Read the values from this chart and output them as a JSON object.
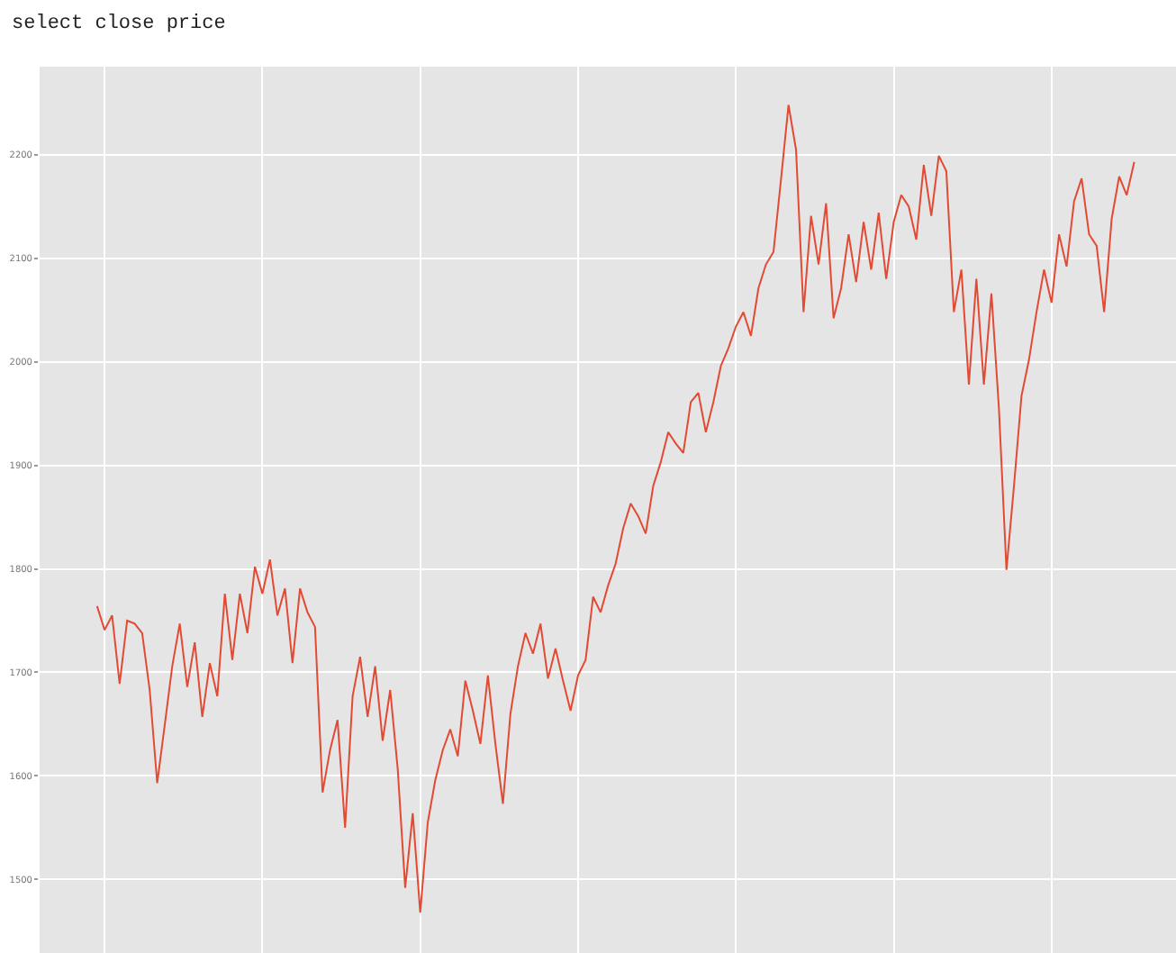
{
  "chart_data": {
    "type": "line",
    "title": "select close price",
    "categories": [
      null,
      null,
      null,
      null,
      null,
      null,
      null,
      null,
      null,
      null,
      null,
      null,
      null,
      null,
      null,
      null,
      null,
      null,
      null,
      null,
      null,
      null,
      null,
      null,
      null,
      null,
      null,
      null,
      null,
      null,
      null,
      null,
      null,
      null,
      null,
      null,
      null,
      null,
      null,
      null,
      null,
      null,
      null,
      null,
      null,
      null,
      null,
      null,
      null,
      null,
      null,
      null,
      null,
      null,
      null,
      null,
      null,
      null,
      null,
      null,
      null,
      null,
      null,
      null,
      null,
      null,
      null,
      null,
      null,
      null,
      null,
      null,
      null,
      null,
      null,
      null,
      null,
      null,
      null,
      null,
      null,
      null,
      null,
      null,
      null,
      null,
      null,
      null,
      null,
      null,
      null,
      null,
      null,
      null,
      null,
      null,
      null,
      null,
      null,
      null,
      null,
      null,
      null,
      null,
      null,
      null,
      null,
      null,
      null,
      null,
      null,
      null,
      null,
      null,
      null,
      null,
      null,
      null,
      null,
      null,
      null,
      null,
      null,
      null,
      null,
      null,
      null,
      null,
      null,
      null,
      null,
      null,
      null,
      null,
      null,
      null,
      null,
      null,
      null
    ],
    "series": [
      {
        "color": "#e24a33",
        "values": [
          1764,
          1741,
          1755,
          1689,
          1750,
          1747,
          1738,
          1683,
          1593,
          1649,
          1706,
          1747,
          1686,
          1729,
          1657,
          1709,
          1677,
          1776,
          1712,
          1776,
          1738,
          1802,
          1776,
          1809,
          1755,
          1781,
          1709,
          1781,
          1758,
          1744,
          1584,
          1625,
          1654,
          1550,
          1677,
          1715,
          1657,
          1706,
          1634,
          1683,
          1607,
          1492,
          1564,
          1468,
          1555,
          1596,
          1625,
          1645,
          1619,
          1692,
          1663,
          1631,
          1697,
          1631,
          1573,
          1660,
          1706,
          1738,
          1718,
          1747,
          1694,
          1723,
          1692,
          1663,
          1697,
          1712,
          1773,
          1758,
          1784,
          1805,
          1839,
          1863,
          1851,
          1834,
          1880,
          1903,
          1932,
          1921,
          1912,
          1961,
          1970,
          1932,
          1961,
          1996,
          2013,
          2034,
          2048,
          2025,
          2071,
          2094,
          2106,
          2176,
          2248,
          2205,
          2048,
          2141,
          2094,
          2153,
          2042,
          2071,
          2123,
          2077,
          2135,
          2089,
          2144,
          2080,
          2135,
          2161,
          2150,
          2118,
          2190,
          2141,
          2199,
          2184,
          2048,
          2089,
          1978,
          2080,
          1978,
          2066,
          1955,
          1799,
          1880,
          1967,
          2002,
          2048,
          2089,
          2057,
          2123,
          2092,
          2155,
          2177,
          2123,
          2112,
          2048,
          2138,
          2179,
          2161,
          2193
        ]
      }
    ],
    "ylim": [
      1429,
      2285
    ],
    "yticks": [
      1500,
      1600,
      1700,
      1800,
      1900,
      2000,
      2100,
      2200
    ],
    "grid": true,
    "line_style": "solid",
    "marker": "none"
  }
}
